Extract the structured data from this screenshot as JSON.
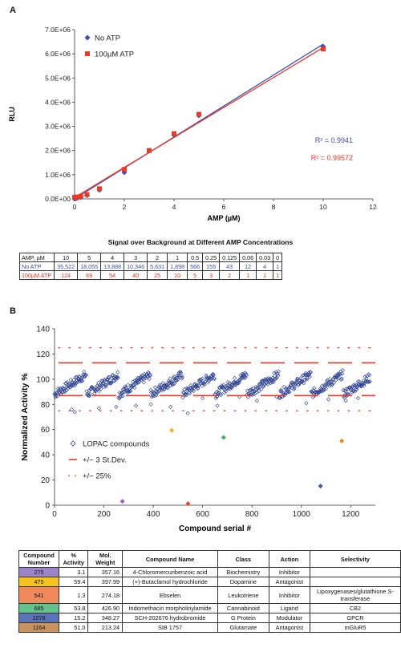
{
  "panel_a_letter": "A",
  "panel_b_letter": "B",
  "signal_table": {
    "title": "Signal over Background at Different AMP Concentrations",
    "header_label": "AMP, µM",
    "concentrations": [
      "10",
      "5",
      "4",
      "3",
      "2",
      "1",
      "0.5",
      "0.25",
      "0.125",
      "0.06",
      "0.03",
      "0"
    ],
    "rows": [
      {
        "label": "No ATP",
        "values": [
          "35,522",
          "18,055",
          "13,888",
          "10,346",
          "5,631",
          "1,898",
          "566",
          "155",
          "43",
          "12",
          "4",
          "1"
        ]
      },
      {
        "label": "100µM ATP",
        "values": [
          "124",
          "69",
          "54",
          "40",
          "25",
          "10",
          "5",
          "3",
          "2",
          "1",
          "1",
          "1"
        ]
      }
    ]
  },
  "compound_table": {
    "headers": [
      "Compound Number",
      "% Activity",
      "Mol. Weight",
      "Compound Name",
      "Class",
      "Action",
      "Selectivity"
    ],
    "rows": [
      {
        "number": "275",
        "activity": "3.1",
        "mw": "357.16",
        "name": "4-Chloromercuribenzoic acid",
        "class": "Biochemistry",
        "action": "Inhibitor",
        "selectivity": "",
        "color": "#9b84c7"
      },
      {
        "number": "475",
        "activity": "59.4",
        "mw": "397.99",
        "name": "(+)-Butaclamol hydrochloride",
        "class": "Dopamine",
        "action": "Antagonist",
        "selectivity": "",
        "color": "#f6c21e"
      },
      {
        "number": "541",
        "activity": "1.3",
        "mw": "274.18",
        "name": "Ebselen",
        "class": "Leukotriene",
        "action": "Inhibitor",
        "selectivity": "Lipoxygenases/glutathione S-transferase",
        "color": "#f08a5d"
      },
      {
        "number": "685",
        "activity": "53.8",
        "mw": "426.90",
        "name": "Indomethacin morpholinylamide",
        "class": "Cannabinoid",
        "action": "Ligand",
        "selectivity": "CB2",
        "color": "#66c28c"
      },
      {
        "number": "1078",
        "activity": "15.2",
        "mw": "348.27",
        "name": "SCH-202676 hydrobromide",
        "class": "G Protein",
        "action": "Modulator",
        "selectivity": "GPCR",
        "color": "#5a73b8"
      },
      {
        "number": "1164",
        "activity": "51.0",
        "mw": "213.24",
        "name": "SIB 1757",
        "class": "Glutamate",
        "action": "Antagonist",
        "selectivity": "mGluR5",
        "color": "#c8935e"
      }
    ]
  },
  "chart_data": [
    {
      "type": "scatter",
      "title": "",
      "xlabel": "AMP (µM)",
      "ylabel": "RLU",
      "xlim": [
        0,
        12
      ],
      "ylim": [
        0,
        7000000
      ],
      "xticks": [
        "0",
        "2",
        "4",
        "6",
        "8",
        "10",
        "12"
      ],
      "yticks": [
        "0.0E+00",
        "1.0E+06",
        "2.0E+06",
        "3.0E+06",
        "4.0E+06",
        "5.0E+06",
        "6.0E+06",
        "7.0E+06"
      ],
      "legend_position": "top-left",
      "series": [
        {
          "name": "No ATP",
          "color": "#3d4fb5",
          "marker": "diamond",
          "x": [
            0,
            0.03,
            0.06,
            0.125,
            0.25,
            0.5,
            1,
            2,
            4,
            5,
            10
          ],
          "y": [
            5000,
            15000,
            25000,
            40000,
            70000,
            150000,
            370000,
            1100000,
            2650000,
            3450000,
            6300000
          ],
          "fit": {
            "slope": 640000,
            "intercept": 0
          },
          "r2": "R² = 0.9941"
        },
        {
          "name": "100µM ATP",
          "color": "#e83a26",
          "marker": "square",
          "x": [
            0,
            0.03,
            0.06,
            0.125,
            0.25,
            0.5,
            1,
            2,
            3,
            4,
            5,
            10
          ],
          "y": [
            60000,
            65000,
            70000,
            80000,
            100000,
            180000,
            420000,
            1220000,
            2000000,
            2700000,
            3500000,
            6200000
          ],
          "fit": {
            "slope": 620000,
            "intercept": 60000
          },
          "r2": "R² = 0.99572"
        }
      ]
    },
    {
      "type": "scatter",
      "title": "",
      "xlabel": "Compound serial #",
      "ylabel": "Normalized Activity %",
      "xlim": [
        0,
        1300
      ],
      "ylim": [
        0,
        140
      ],
      "xticks": [
        "0",
        "200",
        "400",
        "600",
        "800",
        "1000",
        "1200"
      ],
      "yticks": [
        "0",
        "20",
        "40",
        "60",
        "80",
        "100",
        "120",
        "140"
      ],
      "legend_position": "lower-left",
      "series": [
        {
          "name": "LOPAC compounds",
          "color": "#2a3f8f",
          "marker": "open-diamond",
          "n_points": 1280,
          "typical_range": [
            86,
            106
          ]
        },
        {
          "name": "+/− 3 St.Dev.",
          "color": "#e83a26",
          "style": "dash",
          "lines": [
            113,
            87
          ]
        },
        {
          "name": "+/− 25%",
          "color": "#e83a26",
          "style": "dot",
          "lines": [
            125,
            75
          ]
        }
      ],
      "outliers": [
        {
          "x": 70,
          "y": 76
        },
        {
          "x": 82,
          "y": 74
        },
        {
          "x": 180,
          "y": 77
        },
        {
          "x": 250,
          "y": 78
        },
        {
          "x": 330,
          "y": 79
        },
        {
          "x": 390,
          "y": 80
        },
        {
          "x": 470,
          "y": 78
        },
        {
          "x": 540,
          "y": 73
        },
        {
          "x": 600,
          "y": 85
        },
        {
          "x": 660,
          "y": 79
        },
        {
          "x": 750,
          "y": 86
        },
        {
          "x": 820,
          "y": 83
        },
        {
          "x": 900,
          "y": 86
        },
        {
          "x": 1020,
          "y": 81
        },
        {
          "x": 1110,
          "y": 84
        },
        {
          "x": 1180,
          "y": 83
        },
        {
          "x": 1230,
          "y": 85
        }
      ],
      "highlighted": [
        {
          "label": "275",
          "x": 275,
          "y": 3.1,
          "color": "#9b5fc0"
        },
        {
          "label": "475",
          "x": 475,
          "y": 59.4,
          "color": "#f6b21e"
        },
        {
          "label": "541",
          "x": 541,
          "y": 1.3,
          "color": "#e8452a"
        },
        {
          "label": "685",
          "x": 685,
          "y": 53.8,
          "color": "#3faa6a"
        },
        {
          "label": "1078",
          "x": 1078,
          "y": 15.2,
          "color": "#3a57b0"
        },
        {
          "label": "1164",
          "x": 1164,
          "y": 51.0,
          "color": "#e08a1e"
        }
      ]
    }
  ]
}
